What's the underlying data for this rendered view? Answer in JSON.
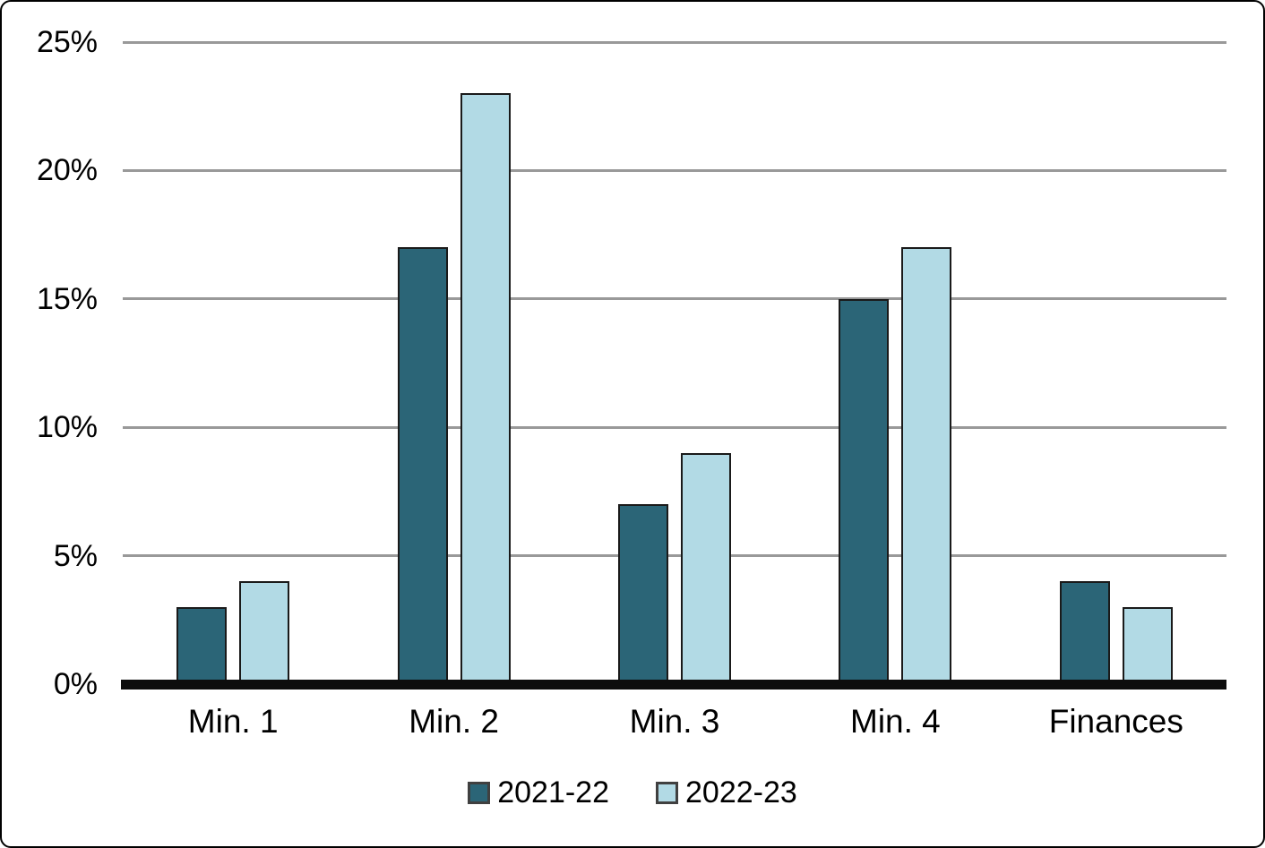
{
  "chart_data": {
    "type": "bar",
    "categories": [
      "Min. 1",
      "Min. 2",
      "Min. 3",
      "Min. 4",
      "Finances"
    ],
    "series": [
      {
        "name": "2021-22",
        "color": "#2B6577",
        "values": [
          3,
          17,
          7,
          15,
          4
        ]
      },
      {
        "name": "2022-23",
        "color": "#B2DAE5",
        "values": [
          4,
          23,
          9,
          17,
          3
        ]
      }
    ],
    "ylim": [
      0,
      25
    ],
    "ytick_step": 5,
    "ytick_labels": [
      "0%",
      "5%",
      "10%",
      "15%",
      "20%",
      "25%"
    ],
    "yunit": "%",
    "grid": true,
    "legend_position": "bottom"
  },
  "styles": {
    "background": "#FFFFFF",
    "gridline_color": "#999999",
    "axis_color": "#0D0D0D",
    "bar_border_color": "#1A1A1A",
    "text_color": "#000000",
    "legend_swatch_border": "#404040"
  }
}
